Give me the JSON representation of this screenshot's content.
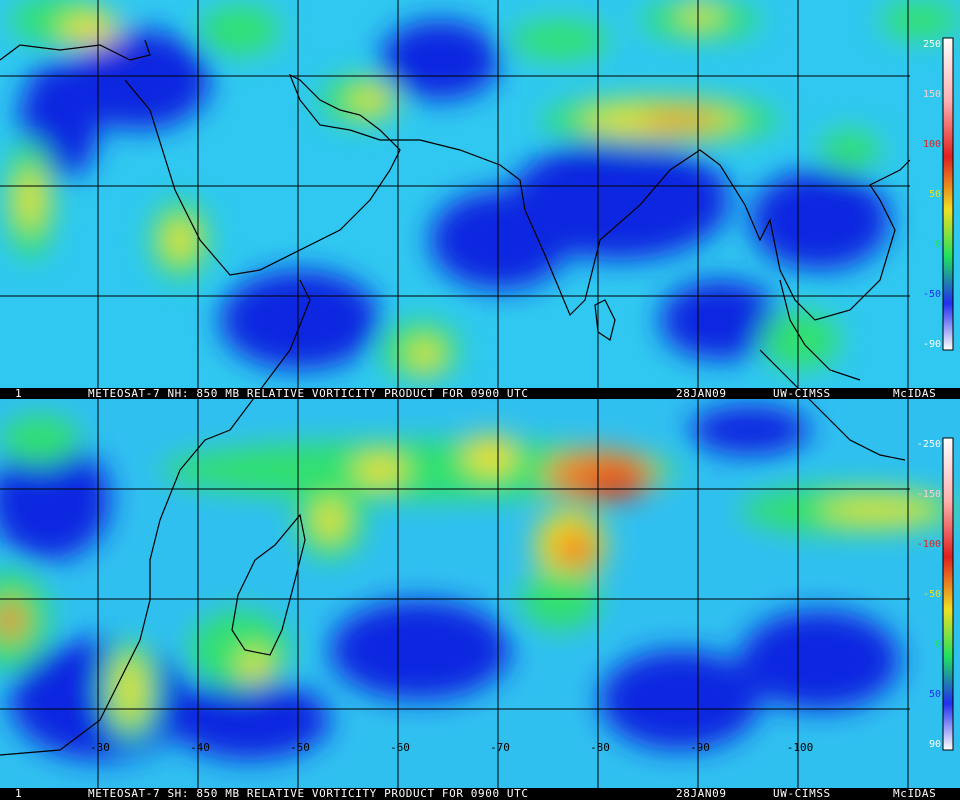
{
  "panels": [
    {
      "banner": {
        "frame": "1",
        "product": "METEOSAT-7 NH: 850 MB RELATIVE VORTICITY PRODUCT FOR 0900 UTC",
        "date": "28JAN09",
        "source": "UW-CIMSS",
        "software": "McIDAS"
      },
      "colorbar_labels": [
        "250",
        "150",
        "100",
        "50",
        "0",
        "-50",
        "-90"
      ]
    },
    {
      "banner": {
        "frame": "1",
        "product": "METEOSAT-7 SH: 850 MB RELATIVE VORTICITY PRODUCT FOR 0900 UTC",
        "date": "28JAN09",
        "source": "UW-CIMSS",
        "software": "McIDAS"
      },
      "colorbar_labels": [
        "-250",
        "-150",
        "-100",
        "-50",
        "0",
        "50",
        "90"
      ],
      "longitude_labels": [
        "-30",
        "-40",
        "-50",
        "-60",
        "-70",
        "-80",
        "-90",
        "-100"
      ]
    }
  ]
}
